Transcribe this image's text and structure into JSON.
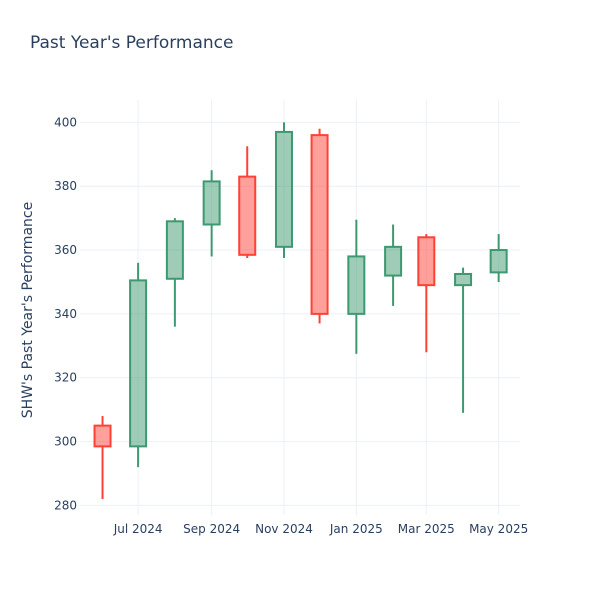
{
  "chart_data": {
    "type": "candlestick",
    "title": "Past Year's Performance",
    "xlabel": "",
    "ylabel": "SHW's Past Year's Performance",
    "ylim": [
      277,
      407
    ],
    "y_ticks": [
      280,
      300,
      320,
      340,
      360,
      380,
      400
    ],
    "x_ticks": [
      {
        "label": "Jul 2024",
        "date": "2024-07-01"
      },
      {
        "label": "Sep 2024",
        "date": "2024-09-01"
      },
      {
        "label": "Nov 2024",
        "date": "2024-11-01"
      },
      {
        "label": "Jan 2025",
        "date": "2025-01-01"
      },
      {
        "label": "Mar 2025",
        "date": "2025-03-01"
      },
      {
        "label": "May 2025",
        "date": "2025-05-01"
      }
    ],
    "xlim": [
      "2024-05-13",
      "2025-05-19"
    ],
    "grid": true,
    "colors": {
      "increasing": "#3d9970",
      "decreasing": "#ff4136"
    },
    "candles": [
      {
        "date": "2024-06-01",
        "open": 305,
        "high": 308,
        "low": 282,
        "close": 298.5
      },
      {
        "date": "2024-07-01",
        "open": 298.5,
        "high": 356,
        "low": 292,
        "close": 350.5
      },
      {
        "date": "2024-08-01",
        "open": 351,
        "high": 370,
        "low": 336,
        "close": 369
      },
      {
        "date": "2024-09-01",
        "open": 368,
        "high": 385,
        "low": 358,
        "close": 381.5
      },
      {
        "date": "2024-10-01",
        "open": 383,
        "high": 392.5,
        "low": 357.5,
        "close": 358.5
      },
      {
        "date": "2024-11-01",
        "open": 361,
        "high": 400,
        "low": 357.5,
        "close": 397
      },
      {
        "date": "2024-12-01",
        "open": 396,
        "high": 398,
        "low": 337,
        "close": 340
      },
      {
        "date": "2025-01-01",
        "open": 340,
        "high": 369.5,
        "low": 327.5,
        "close": 358
      },
      {
        "date": "2025-02-01",
        "open": 352,
        "high": 368,
        "low": 342.5,
        "close": 361
      },
      {
        "date": "2025-03-01",
        "open": 364,
        "high": 365,
        "low": 328,
        "close": 349
      },
      {
        "date": "2025-04-01",
        "open": 349,
        "high": 354.5,
        "low": 309,
        "close": 352.5
      },
      {
        "date": "2025-05-01",
        "open": 353,
        "high": 365,
        "low": 350,
        "close": 360
      }
    ]
  }
}
